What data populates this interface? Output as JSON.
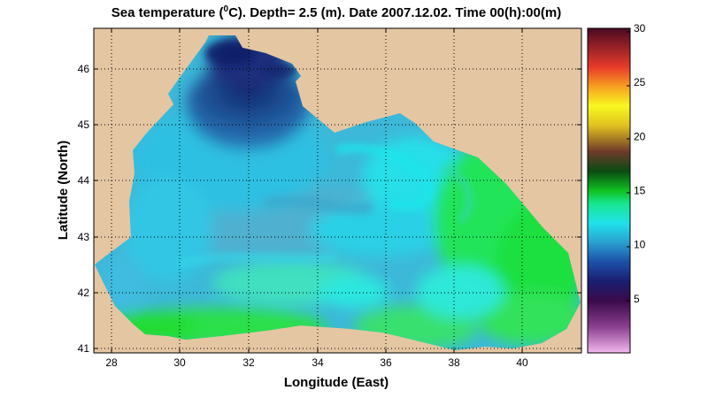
{
  "title": {
    "prefix": "Sea temperature (",
    "sup": "0",
    "suffix": "C). Depth=  2.5 (m). Date 2007.12.02. Time 00(h):00(m)"
  },
  "xlabel": "Longitude (East)",
  "ylabel": "Latitude (North)",
  "xticks": [
    "28",
    "30",
    "32",
    "34",
    "36",
    "38",
    "40"
  ],
  "yticks": [
    "41",
    "42",
    "43",
    "44",
    "45",
    "46"
  ],
  "colorbar_ticks": [
    "5",
    "10",
    "15",
    "20",
    "25",
    "30"
  ],
  "colors": {
    "land": "#e5c6a2",
    "cold": "#1a3f86",
    "cool": "#3ab9d6",
    "mid": "#1ee0ea",
    "warm": "#24e43a"
  },
  "chart_data": {
    "type": "heatmap",
    "xlim": [
      27.5,
      41.8
    ],
    "ylim": [
      40.9,
      46.7
    ],
    "clim": [
      0,
      30
    ],
    "grid": true,
    "colorbar": "right"
  }
}
